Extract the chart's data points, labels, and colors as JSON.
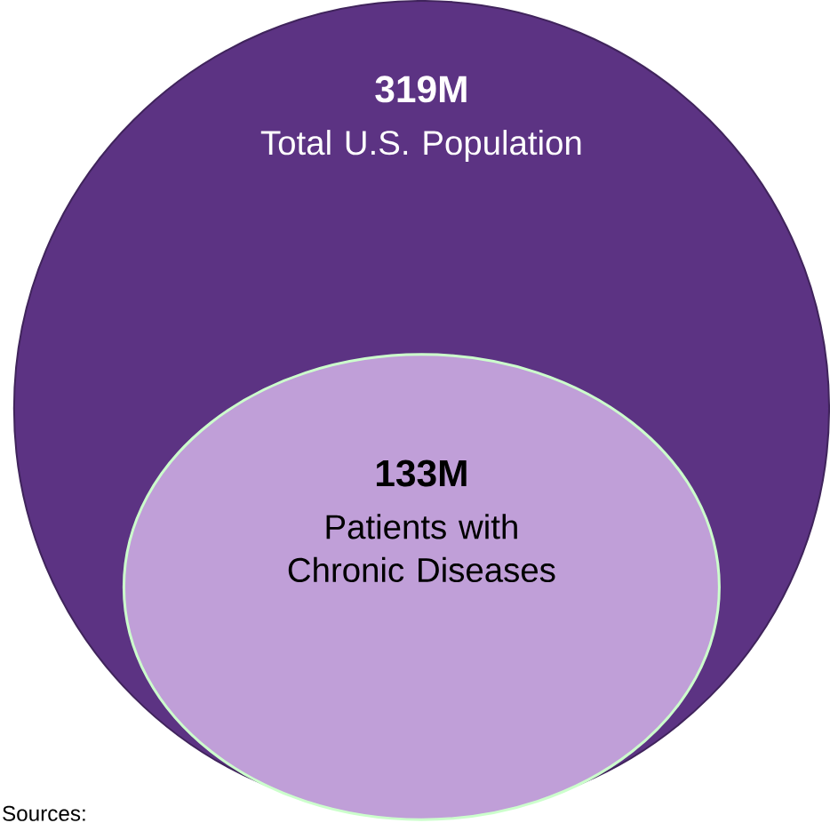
{
  "chart_data": {
    "type": "other",
    "categories": [
      "Total U.S. Population",
      "Patients with Chronic Diseases"
    ],
    "values": [
      319,
      133
    ],
    "value_labels": [
      "319M",
      "133M"
    ],
    "colors": [
      "#5c3383",
      "#c09fd8"
    ],
    "annotations": [
      "Sources:"
    ]
  }
}
